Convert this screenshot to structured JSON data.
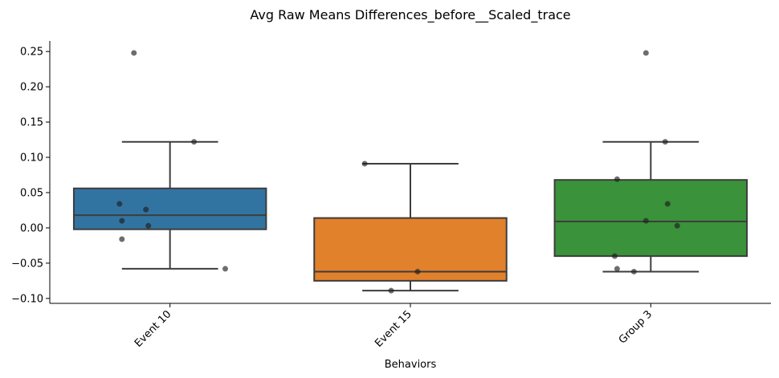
{
  "chart_data": {
    "type": "box",
    "title": "Avg Raw Means Differences_before__Scaled_trace",
    "xlabel": "Behaviors",
    "ylabel": "",
    "categories": [
      "Event 10",
      "Event 15",
      "Group 3"
    ],
    "ylim": [
      -0.107,
      0.265
    ],
    "yticks": [
      -0.1,
      -0.05,
      0.0,
      0.05,
      0.1,
      0.15,
      0.2,
      0.25
    ],
    "ytick_labels": [
      "−0.10",
      "−0.05",
      "0.00",
      "0.05",
      "0.10",
      "0.15",
      "0.20",
      "0.25"
    ],
    "grid": false,
    "boxes": [
      {
        "category": "Event 10",
        "color": "#3274a1",
        "q1": -0.002,
        "median": 0.018,
        "q3": 0.056,
        "whisker_low": -0.058,
        "whisker_high": 0.122
      },
      {
        "category": "Event 15",
        "color": "#e1812c",
        "q1": -0.075,
        "median": -0.062,
        "q3": 0.014,
        "whisker_low": -0.089,
        "whisker_high": 0.091
      },
      {
        "category": "Group 3",
        "color": "#3a923a",
        "q1": -0.04,
        "median": 0.009,
        "q3": 0.068,
        "whisker_low": -0.062,
        "whisker_high": 0.122
      }
    ],
    "points": [
      {
        "category": "Event 10",
        "offset": -0.15,
        "y": 0.248
      },
      {
        "category": "Event 10",
        "offset": 0.1,
        "y": 0.122
      },
      {
        "category": "Event 10",
        "offset": -0.21,
        "y": 0.034
      },
      {
        "category": "Event 10",
        "offset": -0.1,
        "y": 0.026
      },
      {
        "category": "Event 10",
        "offset": -0.2,
        "y": 0.01
      },
      {
        "category": "Event 10",
        "offset": -0.09,
        "y": 0.003
      },
      {
        "category": "Event 10",
        "offset": -0.2,
        "y": -0.016
      },
      {
        "category": "Event 10",
        "offset": 0.23,
        "y": -0.058
      },
      {
        "category": "Event 15",
        "offset": -0.19,
        "y": 0.091
      },
      {
        "category": "Event 15",
        "offset": 0.03,
        "y": -0.062
      },
      {
        "category": "Event 15",
        "offset": -0.08,
        "y": -0.089
      },
      {
        "category": "Group 3",
        "offset": -0.02,
        "y": 0.248
      },
      {
        "category": "Group 3",
        "offset": 0.06,
        "y": 0.122
      },
      {
        "category": "Group 3",
        "offset": -0.14,
        "y": 0.069
      },
      {
        "category": "Group 3",
        "offset": 0.07,
        "y": 0.034
      },
      {
        "category": "Group 3",
        "offset": -0.02,
        "y": 0.01
      },
      {
        "category": "Group 3",
        "offset": 0.11,
        "y": 0.003
      },
      {
        "category": "Group 3",
        "offset": -0.15,
        "y": -0.04
      },
      {
        "category": "Group 3",
        "offset": -0.14,
        "y": -0.058
      },
      {
        "category": "Group 3",
        "offset": -0.07,
        "y": -0.062
      }
    ],
    "point_color": "#1f1f1f",
    "box_edge_color": "#3d3d3d"
  }
}
